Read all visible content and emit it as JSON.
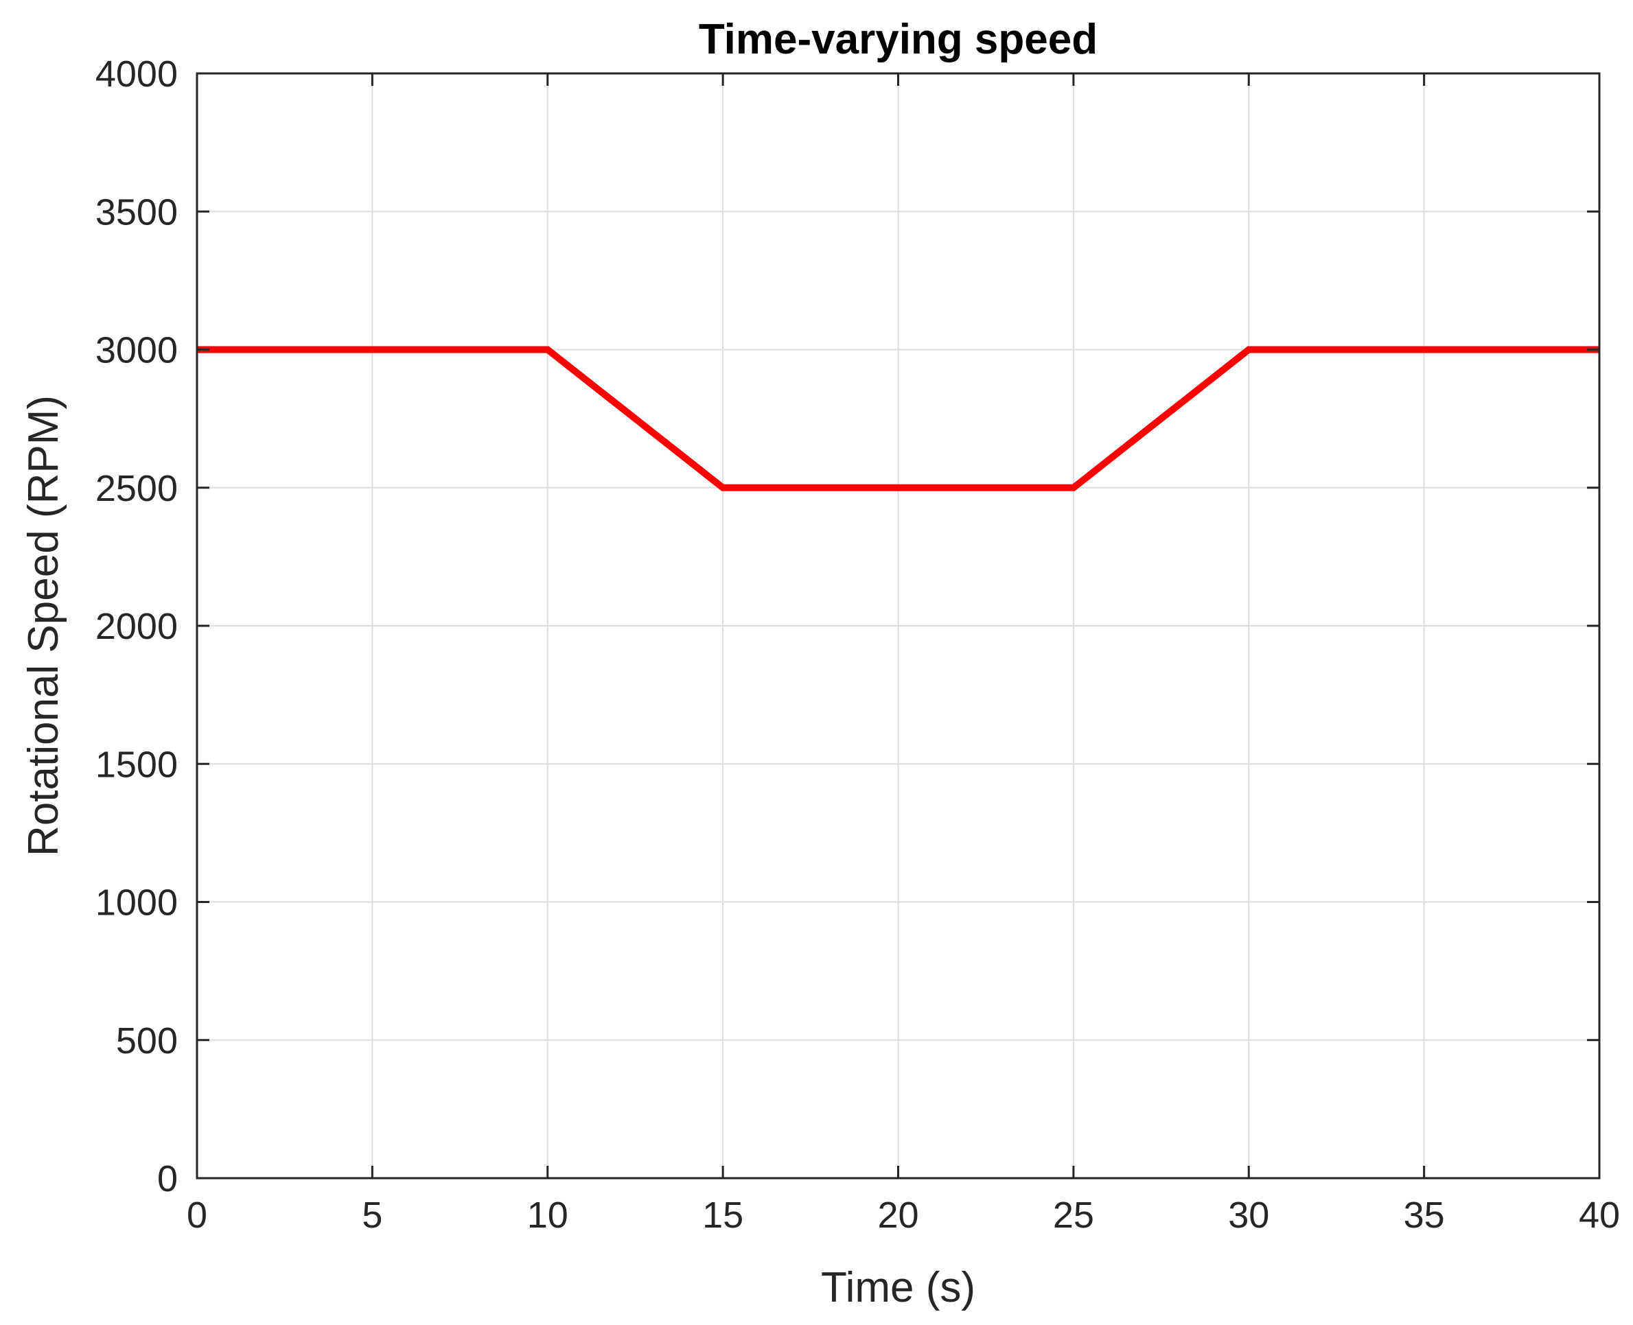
{
  "chart_data": {
    "type": "line",
    "title": "Time-varying speed",
    "xlabel": "Time (s)",
    "ylabel": "Rotational Speed (RPM)",
    "xlim": [
      0,
      40
    ],
    "ylim": [
      0,
      4000
    ],
    "xticks": [
      0,
      5,
      10,
      15,
      20,
      25,
      30,
      35,
      40
    ],
    "yticks": [
      0,
      500,
      1000,
      1500,
      2000,
      2500,
      3000,
      3500,
      4000
    ],
    "grid": true,
    "legend": "none",
    "series": [
      {
        "color": "#ff0000",
        "x": [
          0,
          10,
          15,
          25,
          30,
          40
        ],
        "y": [
          3000,
          3000,
          2500,
          2500,
          3000,
          3000
        ]
      }
    ]
  }
}
